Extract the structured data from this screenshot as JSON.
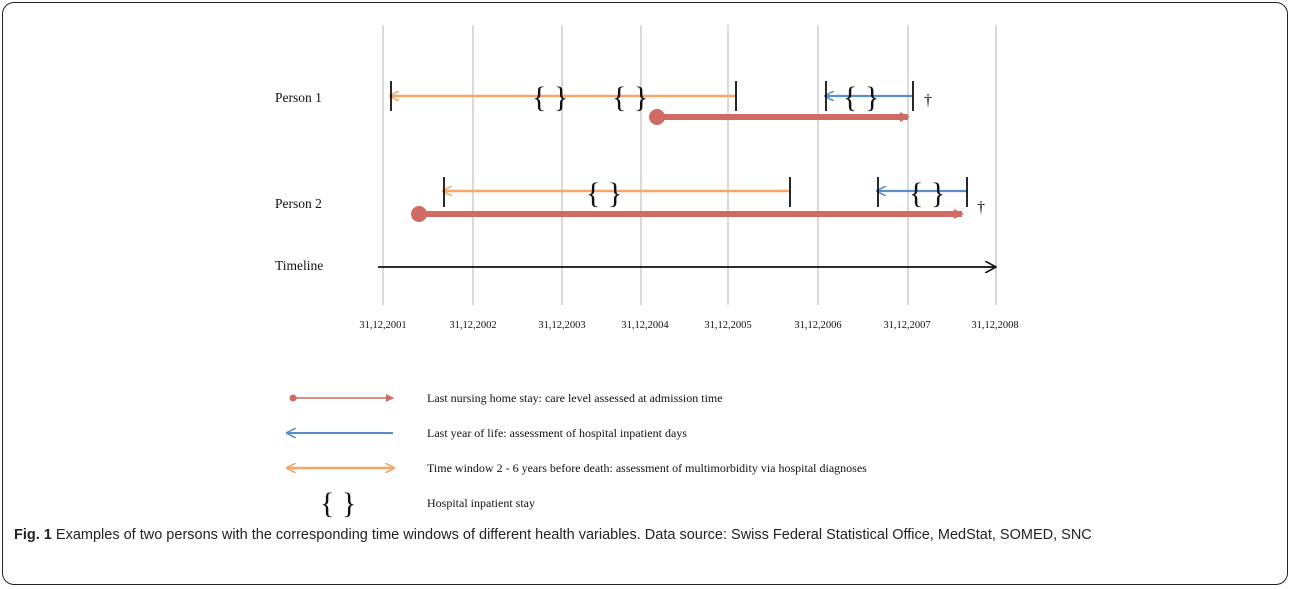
{
  "rows": {
    "person1": "Person 1",
    "person2": "Person 2",
    "timeline": "Timeline"
  },
  "dates": [
    "31,12,2001",
    "31,12,2002",
    "31,12,2003",
    "31,12,2004",
    "31,12,2005",
    "31,12,2006",
    "31,12,2007",
    "31,12,2008"
  ],
  "death_symbol": "†",
  "legend": {
    "nursing_home": "Last nursing home stay: care level assessed at admission time",
    "last_year": "Last year of life: assessment of hospital inpatient days",
    "time_window": "Time window 2 - 6 years before death: assessment of multimorbidity via hospital diagnoses",
    "hospital_stay": "Hospital inpatient stay",
    "hospital_stay_symbol": "{ }"
  },
  "caption": {
    "label": "Fig. 1",
    "text": " Examples of two persons with the corresponding time windows of different health variables. Data source: Swiss Federal Statistical Office, MedStat, SOMED, SNC"
  },
  "colors": {
    "nursing_home": "#d06a64",
    "last_year": "#5b8fc8",
    "time_window": "#f3a86a",
    "grid": "#b5b5b5",
    "ink": "#111111"
  }
}
